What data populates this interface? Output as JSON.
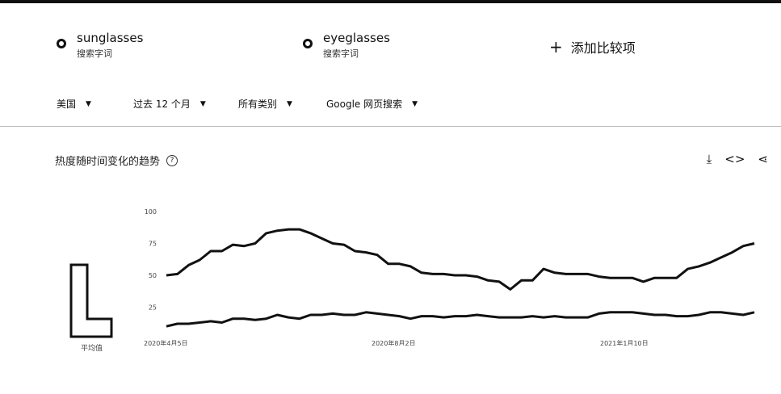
{
  "terms": [
    {
      "name": "sunglasses",
      "sub": "搜索字词"
    },
    {
      "name": "eyeglasses",
      "sub": "搜索字词"
    }
  ],
  "add_compare": {
    "label": "添加比较项",
    "icon": "plus-icon"
  },
  "filters": [
    {
      "label": "美国"
    },
    {
      "label": "过去 12 个月"
    },
    {
      "label": "所有类别"
    },
    {
      "label": "Google 网页搜索"
    }
  ],
  "section": {
    "title": "热度随时间变化的趋势",
    "help_icon": "help-icon"
  },
  "actions": [
    {
      "icon": "download-icon"
    },
    {
      "icon": "embed-code-icon"
    },
    {
      "icon": "share-icon"
    }
  ],
  "average_label": "平均值",
  "chart_data": {
    "type": "line",
    "x_labels": [
      "2020年4月5日",
      "2020年8月2日",
      "2021年1月10日"
    ],
    "y_ticks": [
      100,
      75,
      50,
      25
    ],
    "ylim": [
      0,
      100
    ],
    "series": [
      {
        "name": "sunglasses",
        "values": [
          50,
          51,
          58,
          62,
          69,
          69,
          74,
          73,
          75,
          83,
          85,
          86,
          86,
          83,
          79,
          75,
          74,
          69,
          68,
          66,
          59,
          59,
          57,
          52,
          51,
          51,
          50,
          50,
          49,
          46,
          45,
          39,
          46,
          46,
          55,
          52,
          51,
          51,
          51,
          49,
          48,
          48,
          48,
          45,
          48,
          48,
          48,
          55,
          57,
          60,
          64,
          68,
          73,
          75
        ]
      },
      {
        "name": "eyeglasses",
        "values": [
          10,
          12,
          12,
          13,
          14,
          13,
          16,
          16,
          15,
          16,
          19,
          17,
          16,
          19,
          19,
          20,
          19,
          19,
          21,
          20,
          19,
          18,
          16,
          18,
          18,
          17,
          18,
          18,
          19,
          18,
          17,
          17,
          17,
          18,
          17,
          18,
          17,
          17,
          17,
          20,
          21,
          21,
          21,
          20,
          19,
          19,
          18,
          18,
          19,
          21,
          21,
          20,
          19,
          21
        ]
      }
    ],
    "colors": {
      "line": "#111111"
    }
  }
}
